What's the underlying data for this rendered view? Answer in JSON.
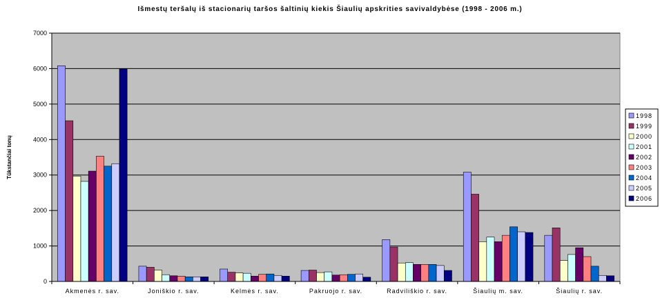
{
  "chart_data": {
    "type": "bar",
    "title": "Išmestų teršalų iš stacionarių taršos šaltinių kiekis Šiaulių apskrities savivaldybėse (1998 - 2006 m.)",
    "xlabel": "",
    "ylabel": "Tūkstančiai tonų",
    "ylim": [
      0,
      7000
    ],
    "yticks": [
      0,
      1000,
      2000,
      3000,
      4000,
      5000,
      6000,
      7000
    ],
    "grid": true,
    "plot_background": "#c0c0c0",
    "legend_position": "right",
    "categories": [
      "Akmenės r. sav.",
      "Joniškio r. sav.",
      "Kelmės r. sav.",
      "Pakruojo r. sav.",
      "Radviliškio r. sav.",
      "Šiaulių m. sav.",
      "Šiaulių r. sav."
    ],
    "series": [
      {
        "name": "1998",
        "color": "#9999ff",
        "values": [
          6080,
          430,
          350,
          310,
          1180,
          3080,
          1300
        ]
      },
      {
        "name": "1999",
        "color": "#993366",
        "values": [
          4530,
          400,
          260,
          320,
          970,
          2460,
          1510
        ]
      },
      {
        "name": "2000",
        "color": "#ffffcc",
        "values": [
          2970,
          320,
          240,
          250,
          520,
          1120,
          590
        ]
      },
      {
        "name": "2001",
        "color": "#ccffff",
        "values": [
          2820,
          190,
          230,
          270,
          530,
          1250,
          760
        ]
      },
      {
        "name": "2002",
        "color": "#660066",
        "values": [
          3110,
          160,
          150,
          180,
          480,
          1120,
          950
        ]
      },
      {
        "name": "2003",
        "color": "#ff8080",
        "values": [
          3530,
          150,
          200,
          190,
          480,
          1300,
          700
        ]
      },
      {
        "name": "2004",
        "color": "#0066cc",
        "values": [
          3250,
          130,
          210,
          200,
          480,
          1540,
          430
        ]
      },
      {
        "name": "2005",
        "color": "#ccccff",
        "values": [
          3320,
          130,
          170,
          210,
          450,
          1400,
          170
        ]
      },
      {
        "name": "2006",
        "color": "#000080",
        "values": [
          5990,
          130,
          150,
          120,
          310,
          1380,
          160
        ]
      }
    ]
  }
}
